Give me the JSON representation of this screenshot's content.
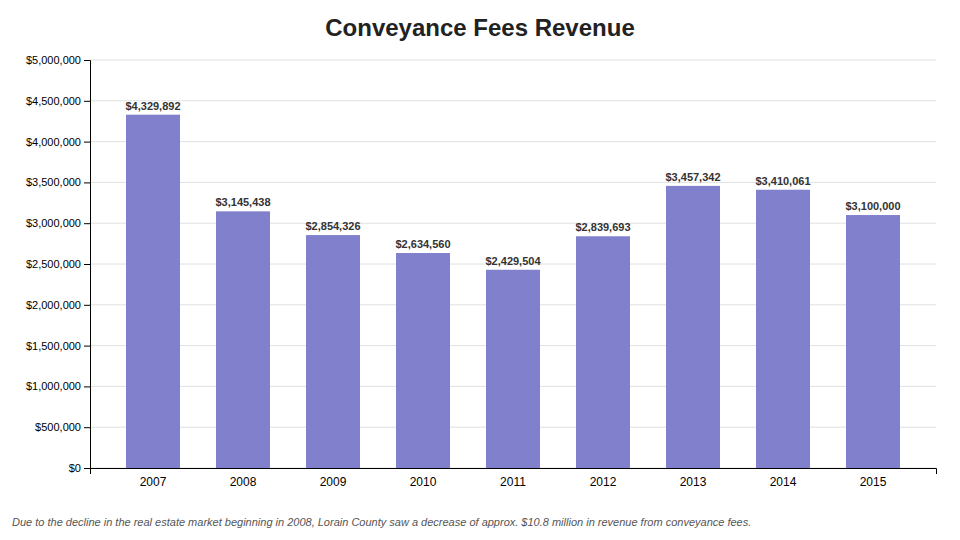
{
  "chart_data": {
    "type": "bar",
    "title": "Conveyance Fees Revenue",
    "categories": [
      "2007",
      "2008",
      "2009",
      "2010",
      "2011",
      "2012",
      "2013",
      "2014",
      "2015"
    ],
    "values": [
      4329892,
      3145438,
      2854326,
      2634560,
      2429504,
      2839693,
      3457342,
      3410061,
      3100000
    ],
    "value_labels": [
      "$4,329,892",
      "$3,145,438",
      "$2,854,326",
      "$2,634,560",
      "$2,429,504",
      "$2,839,693",
      "$3,457,342",
      "$3,410,061",
      "$3,100,000"
    ],
    "data_labels": true,
    "color": "#8080CC",
    "ylim": [
      0,
      5000000
    ],
    "yticks": [
      {
        "value": 0,
        "label": "$0"
      },
      {
        "value": 500000,
        "label": "$500,000"
      },
      {
        "value": 1000000,
        "label": "$1,000,000"
      },
      {
        "value": 1500000,
        "label": "$1,500,000"
      },
      {
        "value": 2000000,
        "label": "$2,000,000"
      },
      {
        "value": 2500000,
        "label": "$2,500,000"
      },
      {
        "value": 3000000,
        "label": "$3,000,000"
      },
      {
        "value": 3500000,
        "label": "$3,500,000"
      },
      {
        "value": 4000000,
        "label": "$4,000,000"
      },
      {
        "value": 4500000,
        "label": "$4,500,000"
      },
      {
        "value": 5000000,
        "label": "$5,000,000"
      }
    ],
    "grid": true,
    "annotations": [
      "Due to the decline in the real estate market beginning in 2008, Lorain County saw a decrease of approx. $10.8 million in revenue from conveyance fees."
    ]
  }
}
